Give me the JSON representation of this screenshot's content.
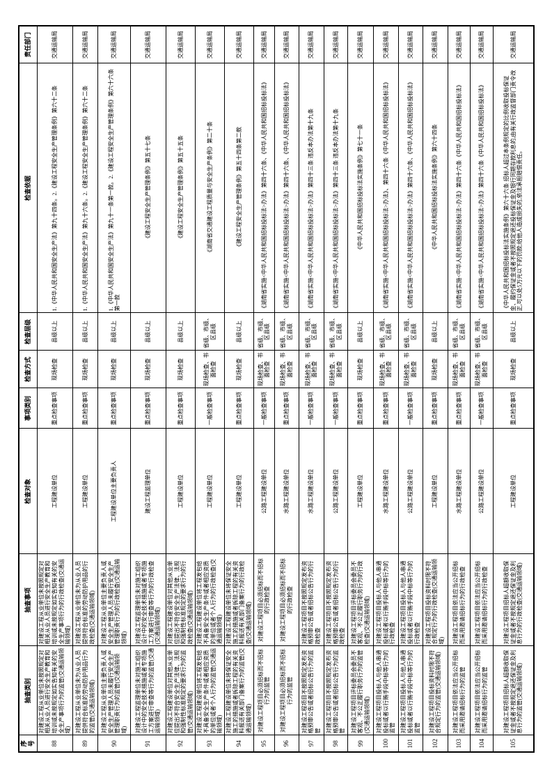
{
  "colors": {
    "border": "#000000",
    "background": "#ffffff",
    "text": "#000000"
  },
  "table": {
    "headers": {
      "no": "序号",
      "category": "抽查类别",
      "item": "抽查事项",
      "target": "检查对象",
      "item_type": "事项类别",
      "method": "检查方式",
      "level": "检查层级",
      "basis": "检查依据",
      "department": "责任部门"
    },
    "rows": [
      {
        "no": "88",
        "category": "对建设工程从业单位未按照规定对相关从业人员进行安全生产教育和培训或未按规定如实告知有关的安全生产事项行为的监管(交通运输领域)",
        "item": "对建设工程从业单位未按照规定对相关从业人员进行安全生产教育和培训或未按规定如实告知有关的安全生产事项行为的行政检查(交通运输领域)",
        "target": "工程建设单位",
        "item_type": "重点检查事项",
        "method": "现场检查",
        "level": "县级以上",
        "basis": "1.《中华人民共和国安全生产法》第九十四条。2.《建设工程安全生产管理条例》第六十二条",
        "department": "交通运输局"
      },
      {
        "no": "89",
        "category": "对建设工程从业单位未为从业人员提供符合标准的劳动防护用品行为的监管(交通运输领域)",
        "item": "对建设工程从业单位未为从业人员提供符合标准的劳动防护用品的行政检查(交通运输领域)",
        "target": "工程建设单位",
        "item_type": "重点检查事项",
        "method": "现场检查",
        "level": "县级以上",
        "basis": "1.《中华人民共和国安全生产法》第九十六条。2.《建设工程安全生产管理条例》第六十二条",
        "department": "交通运输局"
      },
      {
        "no": "90",
        "category": "对建设工程从业单位主要负责人或安全生产管理人员未履行安全生产管理职责行为的监管(交通运输领域)",
        "item": "对建设工程从业单位主要负责人或安全生产管理人员未履行安全生产管理职责行为的行政检查(交通运输领域)",
        "target": "工程建设单位主要负责人",
        "item_type": "重点检查事项",
        "method": "现场检查",
        "level": "县级以上",
        "basis": "1.《中华人民共和国安全生产法》第九十一条第一款。2.《建设工程安全生产管理条例》第六十六条第一款",
        "department": "交通运输局"
      },
      {
        "no": "91",
        "category": "对建设工程监理单位未对施工组织设计中的安全技术措施或者专项施工方案进行审查等行为的监管(交通运输领域)",
        "item": "对建设工程监理单位未对施工组织设计中的安全技术措施或者专项施工方案进行审查等行为的行政检查(交通运输领域)",
        "target": "建设工程监理单位",
        "item_type": "重点检查事项",
        "method": "现场检查",
        "level": "县级以上",
        "basis": "《建设工程安全生产管理条例》第五十七条",
        "department": "交通运输局"
      },
      {
        "no": "92",
        "category": "对建设工程建设单位对其他从业单位提出不符合安全生产法律、法规和强制性标准规定的要求行为的监管(交通运输领域)",
        "item": "对建设工程建设单位对其他从业单位提出不符合安全生产法律、法规和强制性标准规定的要求行为的行政检查(交通运输领域)",
        "target": "工程建设单位",
        "item_type": "重点检查事项",
        "method": "现场检查",
        "level": "县级以上",
        "basis": "《建设工程安全生产管理条例》第五十五条",
        "department": "交通运输局"
      },
      {
        "no": "93",
        "category": "对建设工程建设单位将工程发包给不具备安全生产条件或者相应资质的单位或者个人行为的监管(交通运输领域)",
        "item": "对建设工程建设单位将工程发包给不具备安全生产条件或者相应资质的单位或者个人行为的行政检查(交通运输领域)",
        "target": "工程建设单位",
        "item_type": "一般检查事项",
        "method": "现场检查、书面检查",
        "level": "省级、市级、区县级",
        "basis": "《湖南省交通建设工程质量与安全生产条例》第二十条",
        "department": "交通运输局"
      },
      {
        "no": "94",
        "category": "对建设工程建设单位未将保证安全施工的措施或者拆除工程的有关资料报送有关部门备案行为的监管(交通运输领域)",
        "item": "对建设工程建设单位未将保证安全施工的措施或者拆除工程的有关资料报送有关部门备案行为的行政检查(交通运输领域)",
        "target": "工程建设单位",
        "item_type": "重点检查事项",
        "method": "现场检查",
        "level": "县级以上",
        "basis": "《建设工程安全生产管理条例》第五十四条第二款",
        "department": "交通运输局"
      },
      {
        "no": "95",
        "category": "对建设工程项目必须招标而不招标行为的监管",
        "item": "对建设工程项目必须招标而不招标的行政检查",
        "target": "公路工程建设单位",
        "item_type": "一般检查事项",
        "method": "现场检查、书面检查",
        "level": "省级、市级、区县级",
        "basis": "《湖南省实施<中华人民共和国招标投标法>办法》第四十六条、《中华人民共和国招标投标法》",
        "department": "交通运输局"
      },
      {
        "no": "96",
        "category": "对建设工程项目必须招标而不招标行为的监管",
        "item": "对建设工程项目必须招标而不招标的行政检查",
        "target": "水路工程建设单位",
        "item_type": "重点检查事项",
        "method": "现场检查、书面检查",
        "level": "省级、市级、区县级",
        "basis": "《湖南省实施<中华人民共和国招标投标法>办法》第四十六条、《中华人民共和国招标投标法》",
        "department": "交通运输局"
      },
      {
        "no": "97",
        "category": "对建设工程项目不按照规定发布资格预审公告或者招标公告行为的监管",
        "item": "对建设工程项目不按照规定发布资格预审公告或者招标公告行为的行政检查",
        "target": "水路工程建设单位",
        "item_type": "一般检查事项",
        "method": "现场检查、书面检查",
        "level": "省级、市级、区县级",
        "basis": "《湖南省实施<中华人民共和国招标投标法>办法》第四十三条 违反本办法第十九条",
        "department": "交通运输局"
      },
      {
        "no": "98",
        "category": "对建设工程项目不按照规定发布资格预审公告或者招标公告行为的监管",
        "item": "对建设工程项目不按照规定发布资格预审公告或者招标公告行为的行政检查",
        "target": "公路工程建设单位",
        "item_type": "一般检查事项",
        "method": "现场检查、书面检查",
        "level": "省级、市级、区县级",
        "basis": "《湖南省实施<中华人民共和国招标投标法>办法》第四十三条 违反本办法第十九条",
        "department": "交通运输局"
      },
      {
        "no": "99",
        "category": "对建设工程项目评标委员会委员不客观、不公正履行职务行为的监管(交通运输领域)",
        "item": "对建设工程项目评标委员会委员不客观、不公正履行职务行为的行政检查(交通运输领域)",
        "target": "工程建设单位",
        "item_type": "重点检查事项",
        "method": "现场检查",
        "level": "县级以上",
        "basis": "《中华人民共和国招标投标法实施条例》第七十一条",
        "department": "交通运输局"
      },
      {
        "no": "100",
        "category": "对建设工程项目投标人与他人串通投标或者以行贿手段中标等行为的监管",
        "item": "对建设工程项目投标人与他人串通投标或者以行贿手段中标等行为的行政检查",
        "target": "水路工程建设单位",
        "item_type": "重点检查事项",
        "method": "现场检查、书面检查",
        "level": "省级、市级、区县级",
        "basis": "《湖南省实施<中华人民共和国招标投标法>办法》、第四十六条《中华人民共和国招标投标法》",
        "department": "交通运输局"
      },
      {
        "no": "101",
        "category": "对建设工程项目投标人与他人串通投标或者以行贿手段中标等行为的监管",
        "item": "对建设工程项目投标人与他人串通投标或者以行贿手段中标等行为的行政检查",
        "target": "公路工程建设单位",
        "item_type": "一般检查事项",
        "method": "现场检查、书面检查",
        "level": "省级、市级、区县级",
        "basis": "《湖南省实施<中华人民共和国招标投标法>办法》第四十六条、《中华人民共和国招标投标法》",
        "department": "交通运输局"
      },
      {
        "no": "102",
        "category": "对建设工程项目投标资料时限不符合规定行为的监管(交通运输领域)",
        "item": "对建设工程项目投标资料时限不符合规定行为的行政检查(交通运输领域)",
        "target": "工程建设单位",
        "item_type": "重点检查事项",
        "method": "现场检查",
        "level": "县级以上",
        "basis": "《中华人民共和国招标投标法实施条例》第六十四条",
        "department": "交通运输局"
      },
      {
        "no": "103",
        "category": "对建设工程项目依法应当公开招标而采用邀请招标行为的监管",
        "item": "对建设工程项目依法应当公开招标而采用邀请招标行为的行政检查",
        "target": "水路工程建设单位",
        "item_type": "重点检查事项",
        "method": "现场检查、书面检查",
        "level": "省级、市级、区县级",
        "basis": "《湖南省实施<中华人民共和国招标投标法>办法》第四十六条《中华人民共和国招标投标法》",
        "department": "交通运输局"
      },
      {
        "no": "104",
        "category": "对建设工程项目依法应当公开招标而采用邀请招标行为的监管",
        "item": "对建设工程项目依法应当公开招标而采用邀请招标行为的行政检查",
        "target": "公路工程建设单位",
        "item_type": "一般检查事项",
        "method": "现场检查、书面检查",
        "level": "省级、市级、区县级",
        "basis": "《湖南省实施<中华人民共和国招标投标法>办法》第四十六条《中华人民共和国招标投标法》",
        "department": "交通运输局"
      },
      {
        "no": "105",
        "category": "对建设工程项目招标人超额收取保证金或者不按规定退还保证金及利息行为的监管(交通运输领域)",
        "item": "对建设工程项目招标人超额收取保证金或者不按规定退还保证金及利息行为的行政检查(交通运输领域)",
        "target": "工程建设单位",
        "item_type": "重点检查事项",
        "method": "现场检查",
        "level": "县级以上",
        "basis": "《中华人民共和国招标投标法实施条例》第六十六条 招标人超过本条例规定的比例收取投标保证金、履约保证金或者不按照规定退还投标保证金及银行同期存款利息的,由有关行政监督部门责令改正,可以处5万元以下的罚款;给他人造成损失的,依法承担赔偿责任。",
        "department": "交通运输局"
      }
    ]
  }
}
